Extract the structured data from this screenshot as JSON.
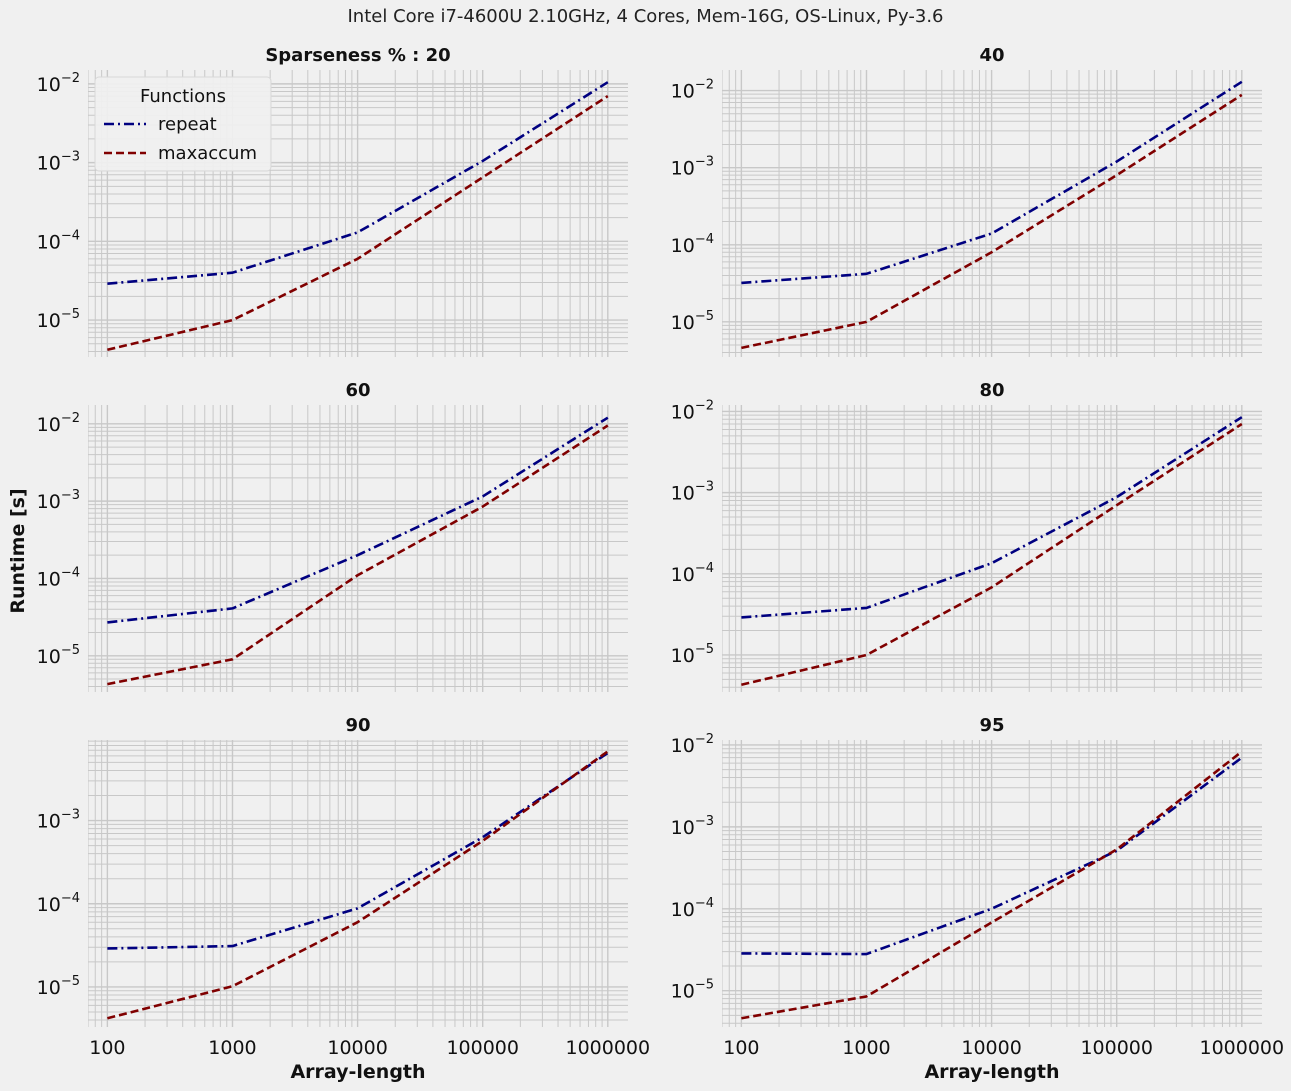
{
  "figure": {
    "suptitle": "Intel Core i7-4600U 2.10GHz, 4 Cores, Mem-16G, OS-Linux, Py-3.6",
    "ylabel": "Runtime [s]",
    "xlabel": "Array-length"
  },
  "legend": {
    "title": "Functions",
    "entries": [
      "repeat",
      "maxaccum"
    ],
    "placement": "upper-left of first subplot"
  },
  "colors": {
    "repeat": "#000080",
    "maxaccum": "#800000",
    "grid": "#c8c8c8",
    "background": "#f0f0f0"
  },
  "chart_data": [
    {
      "type": "line",
      "title": "Sparseness % : 20",
      "xscale": "log",
      "yscale": "log",
      "x": [
        100,
        1000,
        10000,
        100000,
        1000000
      ],
      "xticks": [
        "100",
        "1000",
        "10000",
        "100000",
        "1000000"
      ],
      "yticks": [
        {
          "exp": -5,
          "base": "10"
        },
        {
          "exp": -4,
          "base": "10"
        },
        {
          "exp": -3,
          "base": "10"
        },
        {
          "exp": -2,
          "base": "10"
        }
      ],
      "ylim": [
        3.4e-06,
        0.015
      ],
      "grid": true,
      "series": [
        {
          "name": "repeat",
          "style": "dashdot",
          "values": [
            2.9e-05,
            4e-05,
            0.00013,
            0.00105,
            0.0105
          ]
        },
        {
          "name": "maxaccum",
          "style": "dashed",
          "values": [
            4.2e-06,
            1e-05,
            6e-05,
            0.00065,
            0.007
          ]
        }
      ]
    },
    {
      "type": "line",
      "title": "40",
      "xscale": "log",
      "yscale": "log",
      "x": [
        100,
        1000,
        10000,
        100000,
        1000000
      ],
      "xticks": [
        "100",
        "1000",
        "10000",
        "100000",
        "1000000"
      ],
      "yticks": [
        {
          "exp": -5,
          "base": "10"
        },
        {
          "exp": -4,
          "base": "10"
        },
        {
          "exp": -3,
          "base": "10"
        },
        {
          "exp": -2,
          "base": "10"
        }
      ],
      "ylim": [
        3.5e-06,
        0.0185
      ],
      "grid": true,
      "series": [
        {
          "name": "repeat",
          "style": "dashdot",
          "values": [
            3.2e-05,
            4.2e-05,
            0.00014,
            0.0012,
            0.013
          ]
        },
        {
          "name": "maxaccum",
          "style": "dashed",
          "values": [
            4.6e-06,
            1e-05,
            8e-05,
            0.0008,
            0.0088
          ]
        }
      ]
    },
    {
      "type": "line",
      "title": "60",
      "xscale": "log",
      "yscale": "log",
      "x": [
        100,
        1000,
        10000,
        100000,
        1000000
      ],
      "xticks": [
        "100",
        "1000",
        "10000",
        "100000",
        "1000000"
      ],
      "yticks": [
        {
          "exp": -5,
          "base": "10"
        },
        {
          "exp": -4,
          "base": "10"
        },
        {
          "exp": -3,
          "base": "10"
        },
        {
          "exp": -2,
          "base": "10"
        }
      ],
      "ylim": [
        3.4e-06,
        0.0175
      ],
      "grid": true,
      "series": [
        {
          "name": "repeat",
          "style": "dashdot",
          "values": [
            2.7e-05,
            4.1e-05,
            0.0002,
            0.00115,
            0.012
          ]
        },
        {
          "name": "maxaccum",
          "style": "dashed",
          "values": [
            4.3e-06,
            9e-06,
            0.00011,
            0.00085,
            0.0095
          ]
        }
      ]
    },
    {
      "type": "line",
      "title": "80",
      "xscale": "log",
      "yscale": "log",
      "x": [
        100,
        1000,
        10000,
        100000,
        1000000
      ],
      "xticks": [
        "100",
        "1000",
        "10000",
        "100000",
        "1000000"
      ],
      "yticks": [
        {
          "exp": -5,
          "base": "10"
        },
        {
          "exp": -4,
          "base": "10"
        },
        {
          "exp": -3,
          "base": "10"
        },
        {
          "exp": -2,
          "base": "10"
        }
      ],
      "ylim": [
        3.5e-06,
        0.012
      ],
      "grid": true,
      "series": [
        {
          "name": "repeat",
          "style": "dashdot",
          "values": [
            2.9e-05,
            3.8e-05,
            0.000135,
            0.00088,
            0.0085
          ]
        },
        {
          "name": "maxaccum",
          "style": "dashed",
          "values": [
            4.3e-06,
            1e-05,
            6.8e-05,
            0.0007,
            0.007
          ]
        }
      ]
    },
    {
      "type": "line",
      "title": "90",
      "xscale": "log",
      "yscale": "log",
      "x": [
        100,
        1000,
        10000,
        100000,
        1000000
      ],
      "xticks": [
        "100",
        "1000",
        "10000",
        "100000",
        "1000000"
      ],
      "yticks": [
        {
          "exp": -5,
          "base": "10"
        },
        {
          "exp": -4,
          "base": "10"
        },
        {
          "exp": -3,
          "base": "10"
        }
      ],
      "ylim": [
        3.3e-06,
        0.0093
      ],
      "grid": true,
      "series": [
        {
          "name": "repeat",
          "style": "dashdot",
          "values": [
            2.9e-05,
            3.1e-05,
            8.8e-05,
            0.00063,
            0.0065
          ]
        },
        {
          "name": "maxaccum",
          "style": "dashed",
          "values": [
            4.2e-06,
            1.02e-05,
            6e-05,
            0.00057,
            0.0068
          ]
        }
      ]
    },
    {
      "type": "line",
      "title": "95",
      "xscale": "log",
      "yscale": "log",
      "x": [
        100,
        1000,
        10000,
        100000,
        1000000
      ],
      "xticks": [
        "100",
        "1000",
        "10000",
        "100000",
        "1000000"
      ],
      "yticks": [
        {
          "exp": -5,
          "base": "10"
        },
        {
          "exp": -4,
          "base": "10"
        },
        {
          "exp": -3,
          "base": "10"
        },
        {
          "exp": -2,
          "base": "10"
        }
      ],
      "ylim": [
        3.6e-06,
        0.0115
      ],
      "grid": true,
      "series": [
        {
          "name": "repeat",
          "style": "dashdot",
          "values": [
            2.85e-05,
            2.8e-05,
            0.0001,
            0.00051,
            0.007
          ]
        },
        {
          "name": "maxaccum",
          "style": "dashed",
          "values": [
            4.6e-06,
            8.5e-06,
            6.8e-05,
            0.00053,
            0.0083
          ]
        }
      ]
    }
  ]
}
